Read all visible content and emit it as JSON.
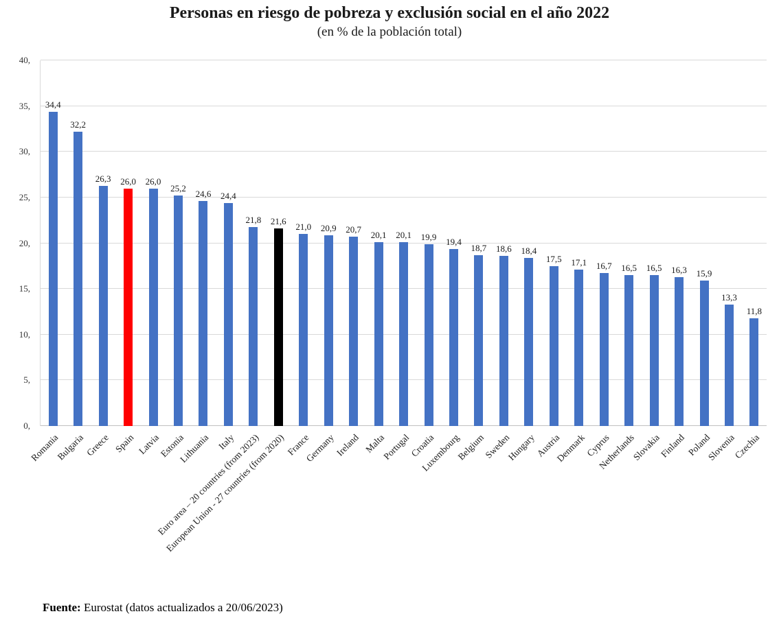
{
  "chart_data": {
    "type": "bar",
    "title": "Personas en riesgo de pobreza y exclusión social en el año 2022",
    "subtitle": "(en % de la población total)",
    "xlabel": "",
    "ylabel": "",
    "ylim": [
      0,
      40
    ],
    "ytick_step": 5,
    "ytick_labels": [
      "0,",
      "5,",
      "10,",
      "15,",
      "20,",
      "25,",
      "30,",
      "35,",
      "40,"
    ],
    "grid": true,
    "legend": "none",
    "bar_default_color": "#4472C4",
    "bar_color_overrides": {
      "3": "#FF0000",
      "9": "#000000"
    },
    "categories": [
      "Romania",
      "Bulgaria",
      "Greece",
      "Spain",
      "Latvia",
      "Estonia",
      "Lithuania",
      "Italy",
      "Euro area – 20 countries (from 2023)",
      "European Union - 27 countries (from 2020)",
      "France",
      "Germany",
      "Ireland",
      "Malta",
      "Portugal",
      "Croatia",
      "Luxembourg",
      "Belgium",
      "Sweden",
      "Hungary",
      "Austria",
      "Denmark",
      "Cyprus",
      "Netherlands",
      "Slovakia",
      "Finland",
      "Poland",
      "Slovenia",
      "Czechia"
    ],
    "values": [
      34.4,
      32.2,
      26.3,
      26.0,
      26.0,
      25.2,
      24.6,
      24.4,
      21.8,
      21.6,
      21.0,
      20.9,
      20.7,
      20.1,
      20.1,
      19.9,
      19.4,
      18.7,
      18.6,
      18.4,
      17.5,
      17.1,
      16.7,
      16.5,
      16.5,
      16.3,
      15.9,
      13.3,
      11.8
    ],
    "value_labels": [
      "34,4",
      "32,2",
      "26,3",
      "26,0",
      "26,0",
      "25,2",
      "24,6",
      "24,4",
      "21,8",
      "21,6",
      "21,0",
      "20,9",
      "20,7",
      "20,1",
      "20,1",
      "19,9",
      "19,4",
      "18,7",
      "18,6",
      "18,4",
      "17,5",
      "17,1",
      "16,7",
      "16,5",
      "16,5",
      "16,3",
      "15,9",
      "13,3",
      "11,8"
    ]
  },
  "source": {
    "label": "Fuente:",
    "text": " Eurostat (datos actualizados a 20/06/2023)"
  }
}
